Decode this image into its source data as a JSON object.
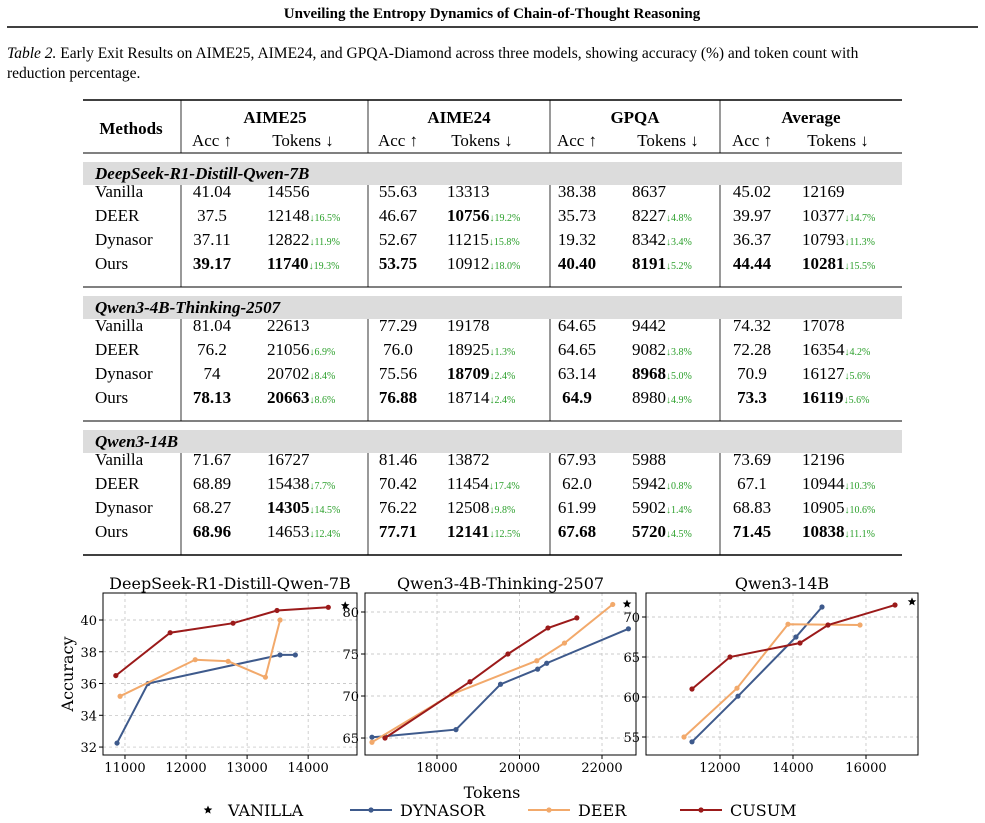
{
  "header": {
    "title": "Unveiling the Entropy Dynamics of Chain-of-Thought Reasoning"
  },
  "caption": {
    "label": "Table 2.",
    "text": "Early Exit Results on AIME25, AIME24, and GPQA-Diamond across three models, showing accuracy (%) and token count with",
    "text2": "reduction percentage."
  },
  "table": {
    "methods_label": "Methods",
    "groups": [
      "AIME25",
      "AIME24",
      "GPQA",
      "Average"
    ],
    "subheaders": [
      "Acc ↑",
      "Tokens ↓"
    ],
    "sections": [
      {
        "name": "DeepSeek-R1-Distill-Qwen-7B",
        "rows": [
          {
            "method": "Vanilla",
            "cells": [
              {
                "text": "41.04"
              },
              {
                "text": "14556"
              },
              {
                "text": "55.63"
              },
              {
                "text": "13313"
              },
              {
                "text": "38.38"
              },
              {
                "text": "8637"
              },
              {
                "text": "45.02"
              },
              {
                "text": "12169"
              }
            ]
          },
          {
            "method": "DEER",
            "cells": [
              {
                "text": "37.5"
              },
              {
                "text": "12148",
                "reduction": "↓16.5%"
              },
              {
                "text": "46.67"
              },
              {
                "text": "10756",
                "reduction": "↓19.2%",
                "bold": true
              },
              {
                "text": "35.73"
              },
              {
                "text": "8227",
                "reduction": "↓4.8%"
              },
              {
                "text": "39.97"
              },
              {
                "text": "10377",
                "reduction": "↓14.7%"
              }
            ]
          },
          {
            "method": "Dynasor",
            "cells": [
              {
                "text": "37.11"
              },
              {
                "text": "12822",
                "reduction": "↓11.9%"
              },
              {
                "text": "52.67"
              },
              {
                "text": "11215",
                "reduction": "↓15.8%"
              },
              {
                "text": "19.32"
              },
              {
                "text": "8342",
                "reduction": "↓3.4%"
              },
              {
                "text": "36.37"
              },
              {
                "text": "10793",
                "reduction": "↓11.3%"
              }
            ]
          },
          {
            "method": "Ours",
            "cells": [
              {
                "text": "39.17",
                "bold": true
              },
              {
                "text": "11740",
                "reduction": "↓19.3%",
                "bold": true
              },
              {
                "text": "53.75",
                "bold": true
              },
              {
                "text": "10912",
                "reduction": "↓18.0%"
              },
              {
                "text": "40.40",
                "bold": true
              },
              {
                "text": "8191",
                "reduction": "↓5.2%",
                "bold": true
              },
              {
                "text": "44.44",
                "bold": true
              },
              {
                "text": "10281",
                "reduction": "↓15.5%",
                "bold": true
              }
            ]
          }
        ]
      },
      {
        "name": "Qwen3-4B-Thinking-2507",
        "rows": [
          {
            "method": "Vanilla",
            "cells": [
              {
                "text": "81.04"
              },
              {
                "text": "22613"
              },
              {
                "text": "77.29"
              },
              {
                "text": "19178"
              },
              {
                "text": "64.65"
              },
              {
                "text": "9442"
              },
              {
                "text": "74.32"
              },
              {
                "text": "17078"
              }
            ]
          },
          {
            "method": "DEER",
            "cells": [
              {
                "text": "76.2"
              },
              {
                "text": "21056",
                "reduction": "↓6.9%"
              },
              {
                "text": "76.0"
              },
              {
                "text": "18925",
                "reduction": "↓1.3%"
              },
              {
                "text": "64.65"
              },
              {
                "text": "9082",
                "reduction": "↓3.8%"
              },
              {
                "text": "72.28"
              },
              {
                "text": "16354",
                "reduction": "↓4.2%"
              }
            ]
          },
          {
            "method": "Dynasor",
            "cells": [
              {
                "text": "74"
              },
              {
                "text": "20702",
                "reduction": "↓8.4%"
              },
              {
                "text": "75.56"
              },
              {
                "text": "18709",
                "reduction": "↓2.4%",
                "bold": true
              },
              {
                "text": "63.14"
              },
              {
                "text": "8968",
                "reduction": "↓5.0%",
                "bold": true
              },
              {
                "text": "70.9"
              },
              {
                "text": "16127",
                "reduction": "↓5.6%"
              }
            ]
          },
          {
            "method": "Ours",
            "cells": [
              {
                "text": "78.13",
                "bold": true
              },
              {
                "text": "20663",
                "reduction": "↓8.6%",
                "bold": true
              },
              {
                "text": "76.88",
                "bold": true
              },
              {
                "text": "18714",
                "reduction": "↓2.4%"
              },
              {
                "text": "64.9",
                "bold": true
              },
              {
                "text": "8980",
                "reduction": "↓4.9%"
              },
              {
                "text": "73.3",
                "bold": true
              },
              {
                "text": "16119",
                "reduction": "↓5.6%",
                "bold": true
              }
            ]
          }
        ]
      },
      {
        "name": "Qwen3-14B",
        "rows": [
          {
            "method": "Vanilla",
            "cells": [
              {
                "text": "71.67"
              },
              {
                "text": "16727"
              },
              {
                "text": "81.46"
              },
              {
                "text": "13872"
              },
              {
                "text": "67.93"
              },
              {
                "text": "5988"
              },
              {
                "text": "73.69"
              },
              {
                "text": "12196"
              }
            ]
          },
          {
            "method": "DEER",
            "cells": [
              {
                "text": "68.89"
              },
              {
                "text": "15438",
                "reduction": "↓7.7%"
              },
              {
                "text": "70.42"
              },
              {
                "text": "11454",
                "reduction": "↓17.4%"
              },
              {
                "text": "62.0"
              },
              {
                "text": "5942",
                "reduction": "↓0.8%"
              },
              {
                "text": "67.1"
              },
              {
                "text": "10944",
                "reduction": "↓10.3%"
              }
            ]
          },
          {
            "method": "Dynasor",
            "cells": [
              {
                "text": "68.27"
              },
              {
                "text": "14305",
                "reduction": "↓14.5%",
                "bold": true
              },
              {
                "text": "76.22"
              },
              {
                "text": "12508",
                "reduction": "↓9.8%"
              },
              {
                "text": "61.99"
              },
              {
                "text": "5902",
                "reduction": "↓1.4%"
              },
              {
                "text": "68.83"
              },
              {
                "text": "10905",
                "reduction": "↓10.6%"
              }
            ]
          },
          {
            "method": "Ours",
            "cells": [
              {
                "text": "68.96",
                "bold": true
              },
              {
                "text": "14653",
                "reduction": "↓12.4%"
              },
              {
                "text": "77.71",
                "bold": true
              },
              {
                "text": "12141",
                "reduction": "↓12.5%",
                "bold": true
              },
              {
                "text": "67.68",
                "bold": true
              },
              {
                "text": "5720",
                "reduction": "↓4.5%",
                "bold": true
              },
              {
                "text": "71.45",
                "bold": true
              },
              {
                "text": "10838",
                "reduction": "↓11.1%",
                "bold": true
              }
            ]
          }
        ]
      }
    ]
  },
  "chart_data": [
    {
      "type": "line",
      "title": "DeepSeek-R1-Distill-Qwen-7B",
      "ylabel": "Accuracy",
      "grid": true,
      "xlim": [
        10640,
        14800
      ],
      "ylim": [
        31.5,
        41.7
      ],
      "xticks": [
        11000,
        12000,
        13000,
        14000
      ],
      "yticks": [
        32,
        34,
        36,
        38,
        40
      ],
      "series": [
        {
          "name": "VANILLA",
          "color": "#000000",
          "marker": "star",
          "x": [
            14607
          ],
          "values": [
            40.9
          ]
        },
        {
          "name": "DYNASOR",
          "color": "#3e5a8c",
          "marker": "circle",
          "x": [
            10870,
            11377,
            13540,
            13790
          ],
          "values": [
            32.25,
            36.0,
            37.8,
            37.8
          ]
        },
        {
          "name": "DEER",
          "color": "#f2a96b",
          "marker": "circle",
          "x": [
            10920,
            12150,
            12690,
            13300,
            13540
          ],
          "values": [
            35.2,
            37.5,
            37.4,
            36.4,
            40.0
          ]
        },
        {
          "name": "CUSUM",
          "color": "#9b1a1a",
          "marker": "circle",
          "x": [
            10850,
            11740,
            12770,
            13490,
            14330
          ],
          "values": [
            36.5,
            39.2,
            39.8,
            40.6,
            40.8
          ]
        }
      ]
    },
    {
      "type": "line",
      "title": "Qwen3-4B-Thinking-2507",
      "xlabel": "Tokens",
      "grid": true,
      "xlim": [
        16255,
        22824
      ],
      "ylim": [
        62.98,
        82.26
      ],
      "xticks": [
        18000,
        20000,
        22000
      ],
      "yticks": [
        65,
        70,
        75,
        80
      ],
      "series": [
        {
          "name": "VANILLA",
          "color": "#000000",
          "marker": "star",
          "x": [
            22606
          ],
          "values": [
            80.95
          ]
        },
        {
          "name": "DYNASOR",
          "color": "#3e5a8c",
          "marker": "circle",
          "x": [
            16424,
            16740,
            18460,
            19540,
            20440,
            20660,
            22640
          ],
          "values": [
            65.1,
            65.2,
            66.0,
            71.4,
            73.2,
            73.9,
            78.0
          ]
        },
        {
          "name": "DEER",
          "color": "#f2a96b",
          "marker": "circle",
          "x": [
            16424,
            18360,
            20420,
            21090,
            22260
          ],
          "values": [
            64.5,
            70.2,
            74.2,
            76.3,
            80.9
          ]
        },
        {
          "name": "CUSUM",
          "color": "#9b1a1a",
          "marker": "circle",
          "x": [
            16740,
            18800,
            19720,
            20690,
            21390
          ],
          "values": [
            65.0,
            71.7,
            75.0,
            78.1,
            79.3
          ]
        }
      ]
    },
    {
      "type": "line",
      "title": "Qwen3-14B",
      "grid": true,
      "xlim": [
        9973,
        17425
      ],
      "ylim": [
        52.75,
        73.0
      ],
      "xticks": [
        12000,
        14000,
        16000
      ],
      "yticks": [
        55,
        60,
        65,
        70
      ],
      "series": [
        {
          "name": "VANILLA",
          "color": "#000000",
          "marker": "star",
          "x": [
            17260
          ],
          "values": [
            71.9
          ]
        },
        {
          "name": "DYNASOR",
          "color": "#3e5a8c",
          "marker": "circle",
          "x": [
            11233,
            12493,
            14082,
            14795
          ],
          "values": [
            54.4,
            60.1,
            67.5,
            71.25
          ]
        },
        {
          "name": "DEER",
          "color": "#f2a96b",
          "marker": "circle",
          "x": [
            11014,
            12466,
            13863,
            15836
          ],
          "values": [
            55.0,
            61.1,
            69.1,
            69.0
          ]
        },
        {
          "name": "CUSUM",
          "color": "#9b1a1a",
          "marker": "circle",
          "x": [
            11233,
            12274,
            14192,
            14959,
            16795
          ],
          "values": [
            61.0,
            65.0,
            66.75,
            69.0,
            71.5
          ]
        }
      ]
    }
  ]
}
